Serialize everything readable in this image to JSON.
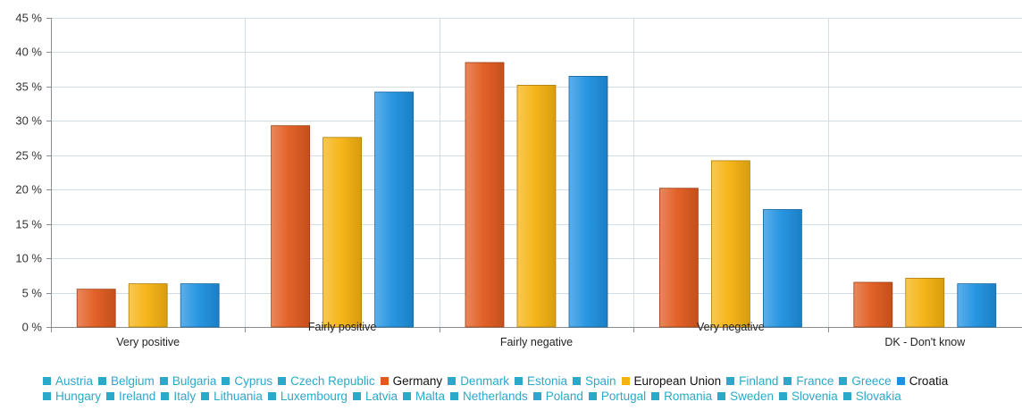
{
  "chart_data": {
    "type": "bar",
    "categories": [
      "Very positive",
      "Fairly positive",
      "Fairly negative",
      "Very negative",
      "DK - Don't know"
    ],
    "series": [
      {
        "name": "Germany",
        "color": "#e05a1e",
        "values": [
          5.5,
          29.3,
          38.5,
          20.2,
          6.5
        ]
      },
      {
        "name": "European Union",
        "color": "#f5b20f",
        "values": [
          6.3,
          27.6,
          35.2,
          24.2,
          7.1
        ]
      },
      {
        "name": "Croatia",
        "color": "#1e90e0",
        "values": [
          6.3,
          34.2,
          36.5,
          17.1,
          6.3
        ]
      }
    ],
    "ylim": [
      0,
      45
    ],
    "yticks": [
      "0 %",
      "5 %",
      "10 %",
      "15 %",
      "20 %",
      "25 %",
      "30 %",
      "35 %",
      "40 %",
      "45 %"
    ],
    "grid": true,
    "legend_placement": "bottom"
  },
  "legend": {
    "items": [
      {
        "label": "Austria",
        "color": "#2aa9c9",
        "active": false
      },
      {
        "label": "Belgium",
        "color": "#2aa9c9",
        "active": false
      },
      {
        "label": "Bulgaria",
        "color": "#2aa9c9",
        "active": false
      },
      {
        "label": "Cyprus",
        "color": "#2aa9c9",
        "active": false
      },
      {
        "label": "Czech Republic",
        "color": "#2aa9c9",
        "active": false
      },
      {
        "label": "Germany",
        "color": "#e05a1e",
        "active": true
      },
      {
        "label": "Denmark",
        "color": "#2aa9c9",
        "active": false
      },
      {
        "label": "Estonia",
        "color": "#2aa9c9",
        "active": false
      },
      {
        "label": "Spain",
        "color": "#2aa9c9",
        "active": false
      },
      {
        "label": "European Union",
        "color": "#f5b20f",
        "active": true
      },
      {
        "label": "Finland",
        "color": "#2aa9c9",
        "active": false
      },
      {
        "label": "France",
        "color": "#2aa9c9",
        "active": false
      },
      {
        "label": "Greece",
        "color": "#2aa9c9",
        "active": false
      },
      {
        "label": "Croatia",
        "color": "#1e90e0",
        "active": true
      },
      {
        "label": "Hungary",
        "color": "#2aa9c9",
        "active": false
      },
      {
        "label": "Ireland",
        "color": "#2aa9c9",
        "active": false
      },
      {
        "label": "Italy",
        "color": "#2aa9c9",
        "active": false
      },
      {
        "label": "Lithuania",
        "color": "#2aa9c9",
        "active": false
      },
      {
        "label": "Luxembourg",
        "color": "#2aa9c9",
        "active": false
      },
      {
        "label": "Latvia",
        "color": "#2aa9c9",
        "active": false
      },
      {
        "label": "Malta",
        "color": "#2aa9c9",
        "active": false
      },
      {
        "label": "Netherlands",
        "color": "#2aa9c9",
        "active": false
      },
      {
        "label": "Poland",
        "color": "#2aa9c9",
        "active": false
      },
      {
        "label": "Portugal",
        "color": "#2aa9c9",
        "active": false
      },
      {
        "label": "Romania",
        "color": "#2aa9c9",
        "active": false
      },
      {
        "label": "Sweden",
        "color": "#2aa9c9",
        "active": false
      },
      {
        "label": "Slovenia",
        "color": "#2aa9c9",
        "active": false
      },
      {
        "label": "Slovakia",
        "color": "#2aa9c9",
        "active": false
      }
    ]
  }
}
